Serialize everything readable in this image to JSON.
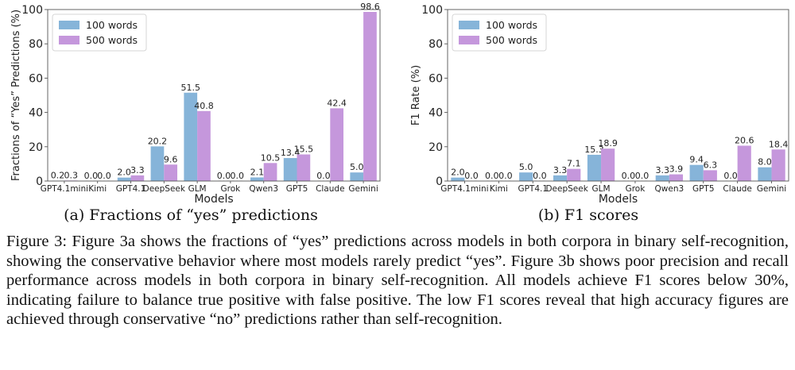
{
  "chart_data": [
    {
      "type": "bar",
      "title": "",
      "xlabel": "Models",
      "ylabel": "Fractions of “Yes” Predictions (%)",
      "ylim": [
        0,
        100
      ],
      "yticks": [
        "0",
        "20",
        "40",
        "60",
        "80",
        "100"
      ],
      "categories": [
        "GPT4.1mini",
        "Kimi",
        "GPT4.1",
        "DeepSeek",
        "GLM",
        "Grok",
        "Qwen3",
        "GPT5",
        "Claude",
        "Gemini"
      ],
      "series": [
        {
          "name": "100 words",
          "color": "#86b4d9",
          "values": [
            0.2,
            0.0,
            2.0,
            20.2,
            51.5,
            0.0,
            2.1,
            13.4,
            0.0,
            5.0
          ],
          "labels": [
            "0.2",
            "0.0",
            "2.0",
            "20.2",
            "51.5",
            "0.0",
            "2.1",
            "13.4",
            "0.0",
            "5.0"
          ]
        },
        {
          "name": "500 words",
          "color": "#c597dc",
          "values": [
            0.3,
            0.0,
            3.3,
            9.6,
            40.8,
            0.0,
            10.5,
            15.5,
            42.4,
            98.6
          ],
          "labels": [
            "0.3",
            "0.0",
            "3.3",
            "9.6",
            "40.8",
            "0.0",
            "10.5",
            "15.5",
            "42.4",
            "98.6"
          ]
        }
      ],
      "legend_position": "top-left",
      "grid": false
    },
    {
      "type": "bar",
      "title": "",
      "xlabel": "Models",
      "ylabel": "F1 Rate (%)",
      "ylim": [
        0,
        100
      ],
      "yticks": [
        "0",
        "20",
        "40",
        "60",
        "80",
        "100"
      ],
      "categories": [
        "GPT4.1mini",
        "Kimi",
        "GPT4.1",
        "DeepSeek",
        "GLM",
        "Grok",
        "Qwen3",
        "GPT5",
        "Claude",
        "Gemini"
      ],
      "series": [
        {
          "name": "100 words",
          "color": "#86b4d9",
          "values": [
            2.0,
            0.0,
            5.0,
            3.3,
            15.3,
            0.0,
            3.3,
            9.4,
            0.0,
            8.0
          ],
          "labels": [
            "2.0",
            "0.0",
            "5.0",
            "3.3",
            "15.3",
            "0.0",
            "3.3",
            "9.4",
            "0.0",
            "8.0"
          ]
        },
        {
          "name": "500 words",
          "color": "#c597dc",
          "values": [
            0.0,
            0.0,
            0.0,
            7.1,
            18.9,
            0.0,
            3.9,
            6.3,
            20.6,
            18.4
          ],
          "labels": [
            "0.0",
            "0.0",
            "0.0",
            "7.1",
            "18.9",
            "0.0",
            "3.9",
            "6.3",
            "20.6",
            "18.4"
          ]
        }
      ],
      "legend_position": "top-left",
      "grid": false
    }
  ],
  "subcaptions": {
    "a": "(a) Fractions of “yes” predictions",
    "b": "(b) F1 scores"
  },
  "figure_caption": "Figure 3: Figure 3a shows the fractions of “yes” predictions across models in both corpora in binary self-recognition, showing the conservative behavior where most models rarely predict “yes”. Figure 3b shows poor precision and recall performance across models in both corpora in binary self-recognition. All models achieve F1 scores below 30%, indicating failure to balance true positive with false positive. The low F1 scores reveal that high accuracy figures are achieved through conservative “no” predictions rather than self-recognition."
}
